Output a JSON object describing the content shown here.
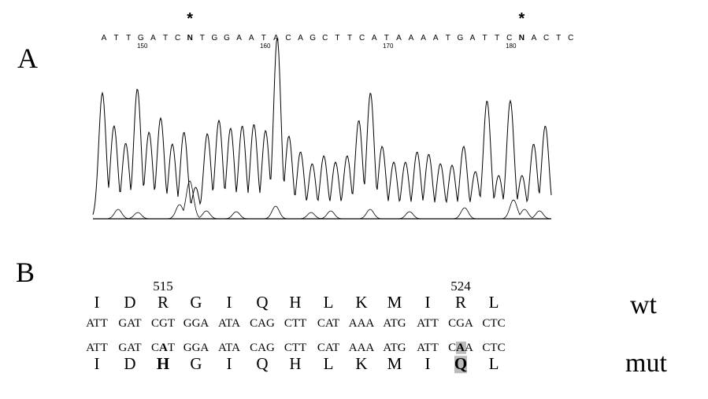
{
  "panel_a": {
    "label": "A",
    "marker": "*",
    "sequence": [
      "A",
      "T",
      "T",
      "G",
      "A",
      "T",
      "C",
      "N",
      "T",
      "G",
      "G",
      "A",
      "A",
      "T",
      "A",
      "C",
      "A",
      "G",
      "C",
      "T",
      "T",
      "C",
      "A",
      "T",
      "A",
      "A",
      "A",
      "A",
      "T",
      "G",
      "A",
      "T",
      "T",
      "C",
      "N",
      "A",
      "C",
      "T",
      "C"
    ],
    "positions": [
      150,
      160,
      170,
      180
    ]
  },
  "panel_b": {
    "label": "B",
    "positions": [
      515,
      524
    ],
    "wt": {
      "label": "wt",
      "amino_acids": [
        "I",
        "D",
        "R",
        "G",
        "I",
        "Q",
        "H",
        "L",
        "K",
        "M",
        "I",
        "R",
        "L"
      ],
      "codons": [
        "ATT",
        "GAT",
        "CGT",
        "GGA",
        "ATA",
        "CAG",
        "CTT",
        "CAT",
        "AAA",
        "ATG",
        "ATT",
        "CGA",
        "CTC"
      ]
    },
    "mut": {
      "label": "mut",
      "codons": [
        "ATT",
        "GAT",
        "CAT",
        "GGA",
        "ATA",
        "CAG",
        "CTT",
        "CAT",
        "AAA",
        "ATG",
        "ATT",
        "CAA",
        "CTC"
      ],
      "amino_acids": [
        "I",
        "D",
        "H",
        "G",
        "I",
        "Q",
        "H",
        "L",
        "K",
        "M",
        "I",
        "Q",
        "L"
      ]
    }
  }
}
